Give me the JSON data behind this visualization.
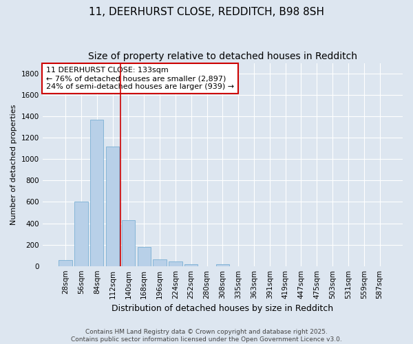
{
  "title": "11, DEERHURST CLOSE, REDDITCH, B98 8SH",
  "subtitle": "Size of property relative to detached houses in Redditch",
  "xlabel": "Distribution of detached houses by size in Redditch",
  "ylabel": "Number of detached properties",
  "categories": [
    "28sqm",
    "56sqm",
    "84sqm",
    "112sqm",
    "140sqm",
    "168sqm",
    "196sqm",
    "224sqm",
    "252sqm",
    "280sqm",
    "308sqm",
    "335sqm",
    "363sqm",
    "391sqm",
    "419sqm",
    "447sqm",
    "475sqm",
    "503sqm",
    "531sqm",
    "559sqm",
    "587sqm"
  ],
  "values": [
    55,
    605,
    1370,
    1120,
    430,
    175,
    65,
    45,
    20,
    0,
    15,
    0,
    0,
    0,
    0,
    0,
    0,
    0,
    0,
    0,
    0
  ],
  "bar_color": "#b8d0e8",
  "bar_edge_color": "#7aafd4",
  "vline_x": 3.5,
  "vline_color": "#cc0000",
  "annotation_title": "11 DEERHURST CLOSE: 133sqm",
  "annotation_line1": "← 76% of detached houses are smaller (2,897)",
  "annotation_line2": "24% of semi-detached houses are larger (939) →",
  "ylim": [
    0,
    1900
  ],
  "yticks": [
    0,
    200,
    400,
    600,
    800,
    1000,
    1200,
    1400,
    1600,
    1800
  ],
  "background_color": "#dde6f0",
  "plot_bg_color": "#dde6f0",
  "footer_line1": "Contains HM Land Registry data © Crown copyright and database right 2025.",
  "footer_line2": "Contains public sector information licensed under the Open Government Licence v3.0.",
  "title_fontsize": 11,
  "subtitle_fontsize": 10,
  "xlabel_fontsize": 9,
  "ylabel_fontsize": 8,
  "tick_fontsize": 7.5,
  "annotation_fontsize": 8,
  "footer_fontsize": 6.5
}
